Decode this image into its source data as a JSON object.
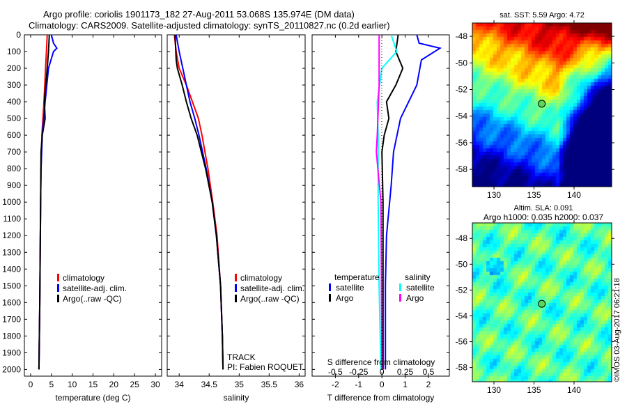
{
  "title_line1": "Argo profile: coriolis 1901173_182 27-Aug-2011 53.068S 135.974E (DM data)",
  "title_line2": "Climatology: CARS2009. Satellite-adjusted climatology: synTS_20110827.nc (0.2d earlier)",
  "timestamp": "©IMOS 03-Aug-2017 06:21:18",
  "colors": {
    "climatology": "#ff0000",
    "satellite": "#0000ff",
    "argo": "#000000",
    "sat_s": "#00ffff",
    "argo_s": "#ff00ff"
  },
  "chart_data": [
    {
      "type": "line",
      "name": "temperature",
      "xlabel": "temperature (deg C)",
      "xlim": [
        -1.5,
        31.5
      ],
      "ylim": [
        2040,
        0
      ],
      "xticks": [
        "0",
        "5",
        "10",
        "15",
        "20",
        "25",
        "30"
      ],
      "xtick_vals": [
        0,
        5,
        10,
        15,
        20,
        25,
        30
      ],
      "yticks": [
        "0",
        "100",
        "200",
        "300",
        "400",
        "500",
        "600",
        "700",
        "800",
        "900",
        "1000",
        "1100",
        "1200",
        "1300",
        "1400",
        "1500",
        "1600",
        "1700",
        "1800",
        "1900",
        "2000"
      ],
      "legend": [
        "climatology",
        "satellite-adj. clim.",
        "Argo(..raw -QC)"
      ],
      "series": [
        {
          "name": "climatology",
          "color": "#ff0000",
          "depth": [
            0,
            100,
            200,
            400,
            600,
            800,
            1000,
            1300,
            1600,
            2000
          ],
          "values": [
            4.0,
            3.8,
            3.6,
            3.2,
            2.7,
            2.5,
            2.4,
            2.3,
            2.2,
            2.0
          ]
        },
        {
          "name": "satellite",
          "color": "#0000ff",
          "depth": [
            0,
            50,
            80,
            100,
            200,
            400,
            600,
            800,
            1000,
            1300,
            1600,
            2000
          ],
          "values": [
            5.0,
            5.5,
            6.3,
            5.5,
            4.3,
            3.5,
            2.8,
            2.5,
            2.4,
            2.3,
            2.2,
            2.0
          ]
        },
        {
          "name": "Argo",
          "color": "#000000",
          "depth": [
            0,
            100,
            200,
            400,
            500,
            600,
            700,
            1000,
            1300,
            1600,
            2000
          ],
          "values": [
            4.5,
            4.3,
            4.0,
            3.3,
            3.5,
            2.8,
            2.5,
            2.4,
            2.3,
            2.2,
            2.0
          ]
        }
      ]
    },
    {
      "type": "line",
      "name": "salinity",
      "xlabel": "salinity",
      "xlim": [
        33.8,
        36.1
      ],
      "ylim": [
        2040,
        0
      ],
      "xticks": [
        "34",
        "34.5",
        "35",
        "35.5",
        "36"
      ],
      "xtick_vals": [
        34,
        34.5,
        35,
        35.5,
        36
      ],
      "legend": [
        "climatology",
        "satellite-adj. clim.",
        "Argo(..raw -QC)"
      ],
      "annotation": [
        "TRACK",
        "PI: Fabien ROQUET"
      ],
      "series": [
        {
          "name": "climatology",
          "color": "#ff0000",
          "depth": [
            0,
            100,
            200,
            300,
            400,
            500,
            600,
            800,
            1000,
            1200,
            1500,
            1800,
            2000
          ],
          "values": [
            33.92,
            33.95,
            34.0,
            34.12,
            34.22,
            34.32,
            34.38,
            34.48,
            34.56,
            34.63,
            34.69,
            34.72,
            34.73
          ]
        },
        {
          "name": "satellite",
          "color": "#0000ff",
          "depth": [
            0,
            100,
            200,
            300,
            400,
            500,
            600,
            800,
            1000,
            1200,
            1500,
            1800,
            2000
          ],
          "values": [
            33.95,
            34.0,
            34.06,
            34.12,
            34.18,
            34.26,
            34.33,
            34.45,
            34.55,
            34.62,
            34.69,
            34.72,
            34.73
          ]
        },
        {
          "name": "Argo",
          "color": "#000000",
          "depth": [
            0,
            150,
            200,
            300,
            400,
            500,
            600,
            800,
            1000,
            1200,
            1500,
            1800,
            2000
          ],
          "values": [
            33.93,
            33.95,
            33.97,
            34.05,
            34.12,
            34.2,
            34.3,
            34.44,
            34.55,
            34.62,
            34.69,
            34.72,
            34.73
          ]
        }
      ]
    },
    {
      "type": "line",
      "name": "difference",
      "xlabel": "T difference from climatology",
      "x2label": "S difference from climatology",
      "xlim": [
        -3,
        2.9
      ],
      "xticks": [
        "-2",
        "-1",
        "0",
        "1",
        "2"
      ],
      "xtick_vals": [
        -2,
        -1,
        0,
        1,
        2
      ],
      "x2ticks": [
        "-0.5",
        "-0.25",
        "0",
        "0.25",
        "0.5"
      ],
      "x2tick_vals": [
        -0.5,
        -0.25,
        0,
        0.25,
        0.5
      ],
      "legend": {
        "temperature": "temperature",
        "salinity": "salinity",
        "satellite": "satellite",
        "argo": "Argo"
      },
      "series": [
        {
          "name": "T satellite",
          "color": "#0000ff",
          "unit": "T",
          "depth": [
            0,
            50,
            80,
            150,
            300,
            500,
            700,
            900,
            1200,
            1500,
            2000
          ],
          "values": [
            1.5,
            1.6,
            2.5,
            1.7,
            1.5,
            0.8,
            0.5,
            0.4,
            0.2,
            0.15,
            0.15
          ]
        },
        {
          "name": "T Argo",
          "color": "#000000",
          "unit": "T",
          "depth": [
            0,
            100,
            200,
            300,
            400,
            500,
            600,
            700,
            1000,
            2000
          ],
          "values": [
            0.7,
            0.6,
            0.9,
            0.6,
            0.2,
            0.3,
            0.1,
            0.0,
            0.05,
            0.05
          ]
        },
        {
          "name": "S satellite",
          "color": "#00ffff",
          "unit": "S",
          "depth": [
            0,
            100,
            200,
            400,
            600,
            1000,
            1500,
            2000
          ],
          "values": [
            0.1,
            0.16,
            0.0,
            -0.05,
            -0.04,
            -0.04,
            -0.03,
            -0.01
          ]
        },
        {
          "name": "S Argo",
          "color": "#ff00ff",
          "unit": "S",
          "depth": [
            0,
            100,
            300,
            600,
            700,
            1000,
            2000
          ],
          "values": [
            -0.03,
            -0.03,
            -0.03,
            -0.05,
            -0.06,
            -0.01,
            0.0
          ]
        }
      ]
    },
    {
      "type": "heatmap",
      "name": "sst-map",
      "title": "sat. SST: 5.59 Argo: 4.72",
      "xlim": [
        127.3,
        144.7
      ],
      "ylim": [
        -59.3,
        -47
      ],
      "xticks": [
        "130",
        "135",
        "140"
      ],
      "xtick_vals": [
        130,
        135,
        140
      ],
      "yticks": [
        "-48",
        "-50",
        "-52",
        "-54",
        "-56",
        "-58"
      ],
      "ytick_vals": [
        -48,
        -50,
        -52,
        -54,
        -56,
        -58
      ],
      "point": [
        135.974,
        -53.068
      ]
    },
    {
      "type": "heatmap",
      "name": "sla-map",
      "title": "Altim. SLA: 0.091",
      "subtitle": "Argo h1000: 0.035 h2000: 0.037",
      "xlim": [
        127.3,
        144.7
      ],
      "ylim": [
        -59.1,
        -46.8
      ],
      "xticks": [
        "130",
        "135",
        "140"
      ],
      "xtick_vals": [
        130,
        135,
        140
      ],
      "yticks": [
        "-48",
        "-50",
        "-52",
        "-54",
        "-56",
        "-58"
      ],
      "ytick_vals": [
        -48,
        -50,
        -52,
        -54,
        -56,
        -58
      ],
      "point": [
        135.974,
        -53.068
      ]
    }
  ]
}
